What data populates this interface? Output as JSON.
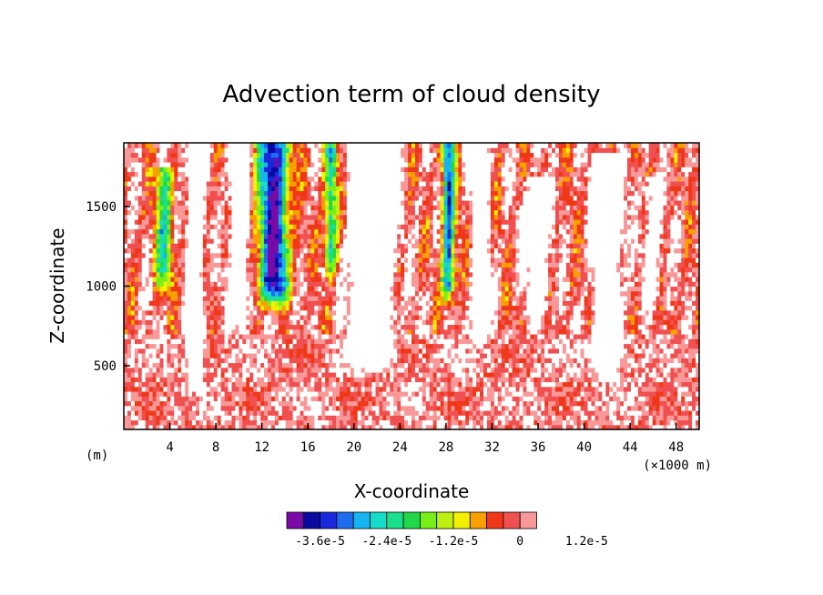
{
  "chart_data": {
    "type": "heatmap",
    "title": "Advection term of cloud density",
    "xlabel": "X-coordinate",
    "ylabel": "Z-coordinate",
    "x_unit_left": "(m)",
    "x_unit_right": "(×1000 m)",
    "xlim": [
      0,
      50
    ],
    "ylim": [
      100,
      1900
    ],
    "x_ticks": [
      4,
      8,
      12,
      16,
      20,
      24,
      28,
      32,
      36,
      40,
      44,
      48
    ],
    "y_ticks": [
      500,
      1000,
      1500
    ],
    "colorbar": {
      "min": -4.2e-05,
      "step": 3e-06,
      "colors": [
        "#7a0aa8",
        "#0a0aa0",
        "#1a28dc",
        "#1e6cf0",
        "#16b4f0",
        "#14dcc8",
        "#18e08c",
        "#20d848",
        "#78f018",
        "#bef012",
        "#f4f000",
        "#f8a000",
        "#f03818",
        "#f05050",
        "#f89898"
      ],
      "tick_labels": [
        "-3.6e-5",
        "-2.4e-5",
        "-1.2e-5",
        "0",
        "1.2e-5"
      ],
      "tick_values": [
        -3.6e-05,
        -2.4e-05,
        -1.2e-05,
        0,
        1.2e-05
      ],
      "above_range_color": "#ffffff"
    },
    "features": [
      {
        "x": 13,
        "z_top": 1900,
        "z_bottom": 820,
        "width": 3.2,
        "peak": -4e-05
      },
      {
        "x": 28.2,
        "z_top": 1900,
        "z_bottom": 820,
        "width": 1.4,
        "peak": -3.2e-05
      },
      {
        "x": 3.5,
        "z_top": 1750,
        "z_bottom": 900,
        "width": 1.8,
        "peak": -2.2e-05
      },
      {
        "x": 18,
        "z_top": 1900,
        "z_bottom": 1000,
        "width": 1.4,
        "peak": -2.6e-05
      },
      {
        "x": 21.5,
        "z_top": 1900,
        "z_bottom": 450,
        "width": 3.6,
        "peak": 4.5e-05
      },
      {
        "x": 6.2,
        "z_top": 1900,
        "z_bottom": 320,
        "width": 1.4,
        "peak": 3e-05
      },
      {
        "x": 10,
        "z_top": 1900,
        "z_bottom": 700,
        "width": 1.6,
        "peak": 3.2e-05
      },
      {
        "x": 42,
        "z_top": 1850,
        "z_bottom": 380,
        "width": 2.6,
        "peak": 3e-05
      },
      {
        "x": 31,
        "z_top": 1900,
        "z_bottom": 600,
        "width": 1.6,
        "peak": 2.2e-05
      },
      {
        "x": 36,
        "z_top": 1700,
        "z_bottom": 700,
        "width": 2.2,
        "peak": 1.6e-05
      },
      {
        "x": 46,
        "z_top": 1700,
        "z_bottom": 800,
        "width": 1.6,
        "peak": 1.4e-05
      }
    ]
  }
}
